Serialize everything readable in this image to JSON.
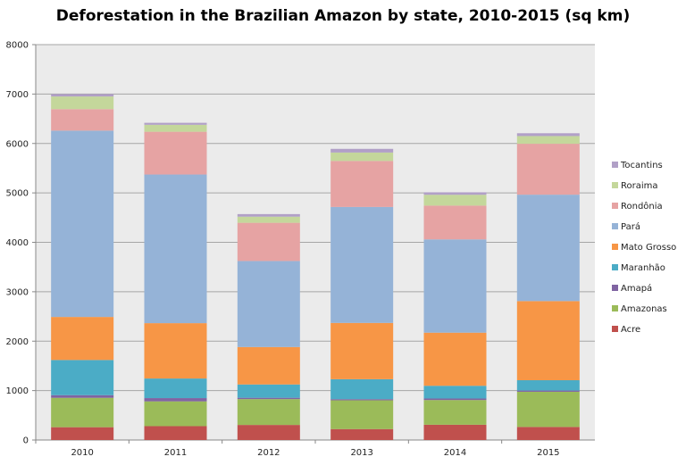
{
  "chart_data": {
    "type": "bar",
    "stacked": true,
    "title": "Deforestation in the Brazilian Amazon by state, 2010-2015 (sq km)",
    "xlabel": "",
    "ylabel": "",
    "ylim": [
      0,
      8000
    ],
    "yticks": [
      "0",
      "1000",
      "2000",
      "3000",
      "4000",
      "5000",
      "6000",
      "7000",
      "8000"
    ],
    "grid": true,
    "legend_placement": "right",
    "categories": [
      "2010",
      "2011",
      "2012",
      "2013",
      "2014",
      "2015"
    ],
    "series": [
      {
        "name": "Acre",
        "color": "#c0504d",
        "values": [
          259,
          280,
          305,
          221,
          309,
          264
        ]
      },
      {
        "name": "Amazonas",
        "color": "#9bbb59",
        "values": [
          595,
          502,
          523,
          583,
          500,
          712
        ]
      },
      {
        "name": "Amapá",
        "color": "#8064a2",
        "values": [
          53,
          66,
          27,
          23,
          31,
          25
        ]
      },
      {
        "name": "Maranhão",
        "color": "#4bacc6",
        "values": [
          712,
          396,
          269,
          403,
          257,
          209
        ]
      },
      {
        "name": "Mato Grosso",
        "color": "#f79646",
        "values": [
          871,
          1120,
          757,
          1139,
          1075,
          1601
        ]
      },
      {
        "name": "Pará",
        "color": "#95b3d7",
        "values": [
          3770,
          3008,
          1741,
          2346,
          1887,
          2153
        ]
      },
      {
        "name": "Rondônia",
        "color": "#e6a3a3",
        "values": [
          435,
          865,
          773,
          932,
          684,
          1030
        ]
      },
      {
        "name": "Roraima",
        "color": "#c4d79b",
        "values": [
          256,
          141,
          124,
          170,
          219,
          156
        ]
      },
      {
        "name": "Tocantins",
        "color": "#b1a0c7",
        "values": [
          49,
          40,
          52,
          74,
          50,
          57
        ]
      }
    ]
  }
}
